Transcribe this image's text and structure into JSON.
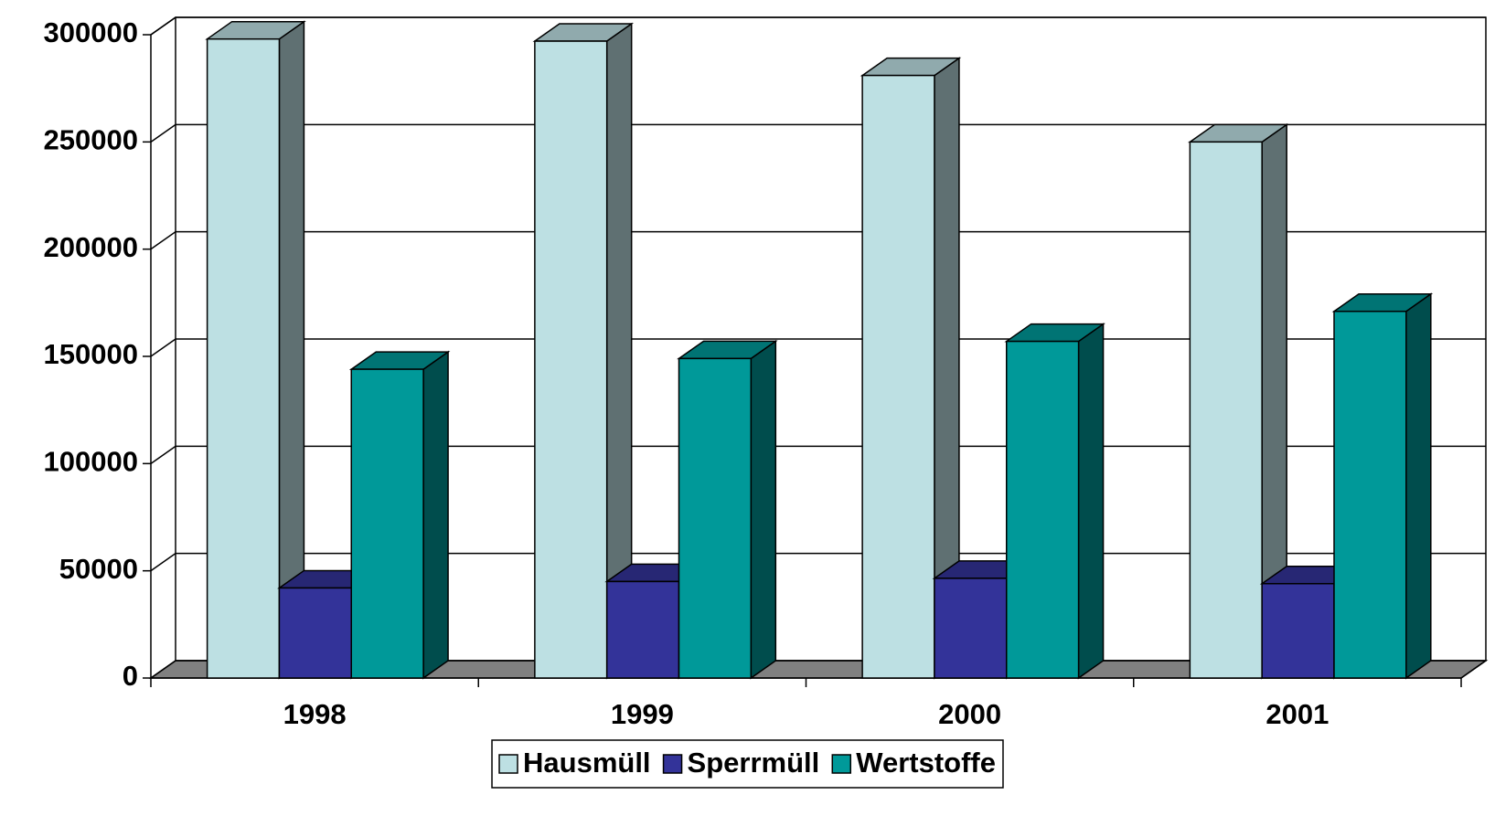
{
  "chart_data": {
    "type": "bar3d",
    "categories": [
      "1998",
      "1999",
      "2000",
      "2001"
    ],
    "series": [
      {
        "name": "Hausmüll",
        "color": "#bde0e3",
        "values": [
          298000,
          297000,
          281000,
          250000
        ]
      },
      {
        "name": "Sperrmüll",
        "color": "#333399",
        "values": [
          42000,
          45000,
          46500,
          44000
        ]
      },
      {
        "name": "Wertstoffe",
        "color": "#009999",
        "values": [
          144000,
          149000,
          157000,
          171000
        ]
      }
    ],
    "ylim": [
      0,
      300000
    ],
    "yticks": [
      0,
      50000,
      100000,
      150000,
      200000,
      250000,
      300000
    ],
    "grid": true,
    "legend": "bottom"
  }
}
